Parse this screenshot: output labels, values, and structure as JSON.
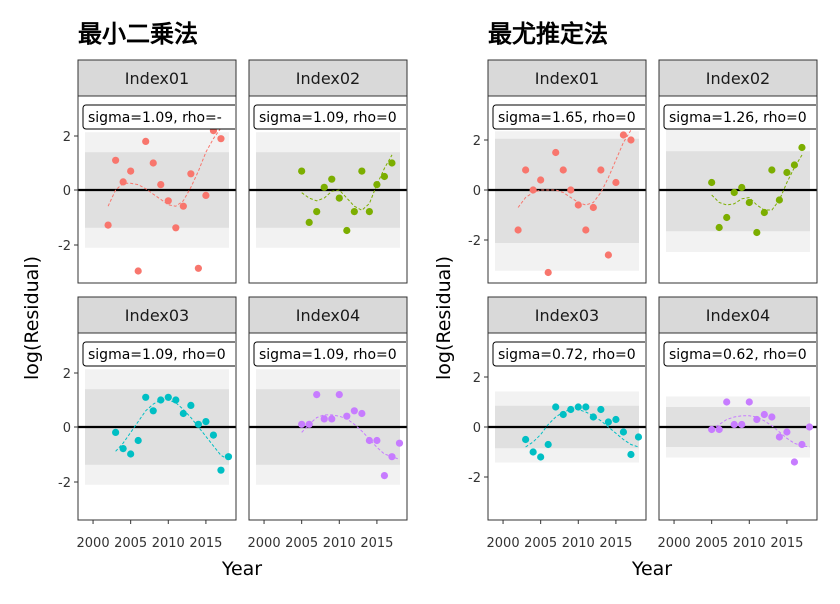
{
  "chart_data": [
    {
      "type": "scatter",
      "title": "最小二乗法",
      "xlabel": "Year",
      "ylabel": "log(Residual)",
      "xlim": [
        1998,
        2019
      ],
      "ylim": [
        -3.3,
        3.1
      ],
      "x_ticks": [
        2000,
        2005,
        2010,
        2015
      ],
      "y_ticks": [
        -2,
        0,
        2
      ],
      "x_tick_labels": [
        "2000",
        "2005",
        "2010",
        "2015"
      ],
      "y_tick_labels": [
        "-2",
        "0",
        "2"
      ],
      "panels": [
        {
          "label": "Index01",
          "annotation": "sigma=1.09, rho=-",
          "color": "#F8766D",
          "band_outer": [
            -2.14,
            2.14
          ],
          "band_inner": [
            -1.4,
            1.4
          ],
          "x": [
            2002,
            2003,
            2004,
            2005,
            2006,
            2007,
            2008,
            2009,
            2010,
            2011,
            2012,
            2013,
            2014,
            2015,
            2016,
            2017
          ],
          "y": [
            -1.3,
            1.1,
            0.3,
            0.7,
            -3.0,
            1.8,
            1.0,
            0.2,
            -0.4,
            -1.4,
            -0.6,
            0.6,
            -2.9,
            -0.2,
            2.2,
            1.9
          ],
          "trend": [
            -0.6,
            0.0,
            0.25,
            0.25,
            0.2,
            0.05,
            -0.15,
            -0.35,
            -0.55,
            -0.6,
            -0.4,
            0.1,
            0.7,
            1.4,
            1.9,
            2.3
          ]
        },
        {
          "label": "Index02",
          "annotation": "sigma=1.09, rho=0",
          "color": "#7CAE00",
          "band_outer": [
            -2.14,
            2.14
          ],
          "band_inner": [
            -1.4,
            1.4
          ],
          "x": [
            2005,
            2006,
            2007,
            2008,
            2009,
            2010,
            2011,
            2012,
            2013,
            2014,
            2015,
            2016,
            2017
          ],
          "y": [
            0.7,
            -1.2,
            -0.8,
            0.1,
            0.4,
            -0.3,
            -1.5,
            -0.8,
            0.7,
            -0.8,
            0.2,
            0.5,
            1.0
          ],
          "trend": [
            -0.1,
            -0.3,
            -0.4,
            -0.3,
            -0.05,
            0.0,
            -0.3,
            -0.6,
            -0.75,
            -0.5,
            0.2,
            0.8,
            1.3
          ]
        },
        {
          "label": "Index03",
          "annotation": "sigma=1.09, rho=0",
          "color": "#00BFC4",
          "band_outer": [
            -2.14,
            2.14
          ],
          "band_inner": [
            -1.4,
            1.4
          ],
          "x": [
            2003,
            2004,
            2005,
            2006,
            2007,
            2008,
            2009,
            2010,
            2011,
            2012,
            2013,
            2014,
            2015,
            2016,
            2017,
            2018
          ],
          "y": [
            -0.2,
            -0.8,
            -1.0,
            -0.5,
            1.1,
            0.6,
            1.0,
            1.1,
            1.0,
            0.5,
            0.8,
            0.1,
            0.2,
            -0.3,
            -1.6,
            -1.1
          ],
          "trend": [
            -0.9,
            -0.6,
            -0.2,
            0.2,
            0.6,
            0.85,
            1.0,
            1.0,
            0.9,
            0.65,
            0.35,
            0.0,
            -0.35,
            -0.7,
            -1.05,
            -1.2
          ]
        },
        {
          "label": "Index04",
          "annotation": "sigma=1.09, rho=0",
          "color": "#C77CFF",
          "band_outer": [
            -2.14,
            2.14
          ],
          "band_inner": [
            -1.4,
            1.4
          ],
          "x": [
            2005,
            2006,
            2007,
            2008,
            2009,
            2010,
            2011,
            2012,
            2013,
            2014,
            2015,
            2016,
            2017,
            2018
          ],
          "y": [
            0.1,
            0.1,
            1.2,
            0.3,
            0.3,
            1.2,
            0.4,
            0.6,
            0.5,
            -0.5,
            -0.5,
            -1.8,
            -1.1,
            -0.6
          ],
          "trend": [
            -0.2,
            0.1,
            0.35,
            0.45,
            0.45,
            0.4,
            0.3,
            0.1,
            -0.15,
            -0.45,
            -0.75,
            -1.0,
            -1.1,
            -1.2
          ]
        }
      ]
    },
    {
      "type": "scatter",
      "title": "最尤推定法",
      "xlabel": "Year",
      "ylabel": "log(Residual)",
      "xlim": [
        1998,
        2019
      ],
      "ylim": [
        -3.6,
        3.1
      ],
      "x_ticks": [
        2000,
        2005,
        2010,
        2015
      ],
      "y_ticks": [
        -2,
        0,
        2
      ],
      "x_tick_labels": [
        "2000",
        "2005",
        "2010",
        "2015"
      ],
      "y_tick_labels": [
        "-2",
        "0",
        "2"
      ],
      "panels": [
        {
          "label": "Index01",
          "annotation": "sigma=1.65, rho=0",
          "color": "#F8766D",
          "band_outer": [
            -3.23,
            2.35
          ],
          "band_inner": [
            -2.12,
            2.05
          ],
          "x": [
            2002,
            2003,
            2004,
            2005,
            2006,
            2007,
            2008,
            2009,
            2010,
            2011,
            2012,
            2013,
            2014,
            2015,
            2016,
            2017
          ],
          "y": [
            -1.6,
            0.8,
            0.0,
            0.4,
            -3.3,
            1.5,
            0.8,
            0.0,
            -0.6,
            -1.6,
            -0.7,
            0.8,
            -2.6,
            0.3,
            2.2,
            2.0
          ],
          "trend": [
            -0.7,
            -0.3,
            -0.1,
            0.0,
            0.0,
            0.0,
            -0.1,
            -0.3,
            -0.5,
            -0.6,
            -0.5,
            -0.1,
            0.5,
            1.2,
            1.9,
            2.4
          ]
        },
        {
          "label": "Index02",
          "annotation": "sigma=1.26, rho=0",
          "color": "#7CAE00",
          "band_outer": [
            -2.48,
            2.48
          ],
          "band_inner": [
            -1.65,
            1.55
          ],
          "x": [
            2005,
            2006,
            2007,
            2008,
            2009,
            2010,
            2011,
            2012,
            2013,
            2014,
            2015,
            2016,
            2017
          ],
          "y": [
            0.3,
            -1.5,
            -1.1,
            -0.1,
            0.1,
            -0.5,
            -1.7,
            -0.9,
            0.8,
            -0.4,
            0.7,
            1.0,
            1.7
          ],
          "trend": [
            -0.2,
            -0.5,
            -0.6,
            -0.55,
            -0.35,
            -0.3,
            -0.6,
            -0.8,
            -0.8,
            -0.4,
            0.3,
            0.9,
            1.4
          ]
        },
        {
          "label": "Index03",
          "annotation": "sigma=0.72, rho=0",
          "color": "#00BFC4",
          "band_outer": [
            -1.42,
            1.42
          ],
          "band_inner": [
            -0.85,
            0.85
          ],
          "x": [
            2003,
            2004,
            2005,
            2006,
            2007,
            2008,
            2009,
            2010,
            2011,
            2012,
            2013,
            2014,
            2015,
            2016,
            2017,
            2018
          ],
          "y": [
            -0.5,
            -1.0,
            -1.2,
            -0.7,
            0.8,
            0.5,
            0.7,
            0.8,
            0.8,
            0.4,
            0.7,
            0.2,
            0.3,
            -0.2,
            -1.1,
            -0.4
          ],
          "trend": [
            -0.8,
            -0.6,
            -0.3,
            0.1,
            0.4,
            0.6,
            0.7,
            0.7,
            0.6,
            0.45,
            0.25,
            0.0,
            -0.25,
            -0.5,
            -0.7,
            -0.8
          ]
        },
        {
          "label": "Index04",
          "annotation": "sigma=0.62, rho=0",
          "color": "#C77CFF",
          "band_outer": [
            -1.22,
            1.22
          ],
          "band_inner": [
            -0.8,
            0.8
          ],
          "x": [
            2005,
            2006,
            2007,
            2008,
            2009,
            2010,
            2011,
            2012,
            2013,
            2014,
            2015,
            2016,
            2017,
            2018
          ],
          "y": [
            -0.1,
            -0.1,
            1.0,
            0.1,
            0.1,
            1.0,
            0.3,
            0.5,
            0.4,
            -0.4,
            -0.2,
            -1.4,
            -0.7,
            0.0
          ],
          "trend": [
            -0.1,
            0.1,
            0.3,
            0.4,
            0.45,
            0.45,
            0.4,
            0.25,
            0.05,
            -0.2,
            -0.45,
            -0.65,
            -0.75,
            -0.8
          ]
        }
      ]
    }
  ]
}
